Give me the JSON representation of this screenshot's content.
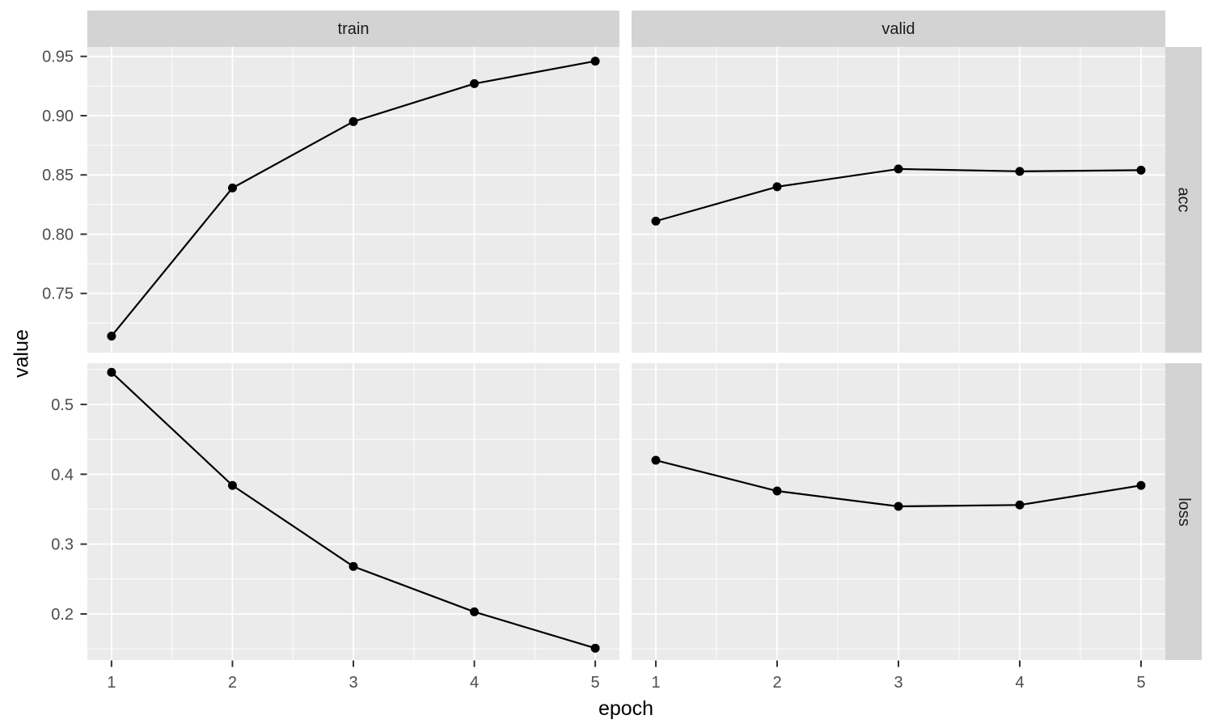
{
  "figure": {
    "xlabel": "epoch",
    "ylabel": "value",
    "facet_cols": [
      "train",
      "valid"
    ],
    "facet_rows": [
      "acc",
      "loss"
    ]
  },
  "colors": {
    "page_bg": "#FFFFFF",
    "panel_bg": "#EBEBEB",
    "strip_bg": "#D3D3D3",
    "grid": "#FFFFFF",
    "series": "#000000",
    "axis_text": "#4D4D4D",
    "tick_mark": "#333333",
    "strip_text": "#1A1A1A",
    "title_text": "#000000"
  },
  "chart_data": {
    "type": "line",
    "title": "",
    "xlabel": "epoch",
    "ylabel": "value",
    "grid": true,
    "legend": false,
    "facet_layout": {
      "columns": [
        "train",
        "valid"
      ],
      "rows": [
        "acc",
        "loss"
      ]
    },
    "x": [
      1,
      2,
      3,
      4,
      5
    ],
    "x_tick_labels": [
      "1",
      "2",
      "3",
      "4",
      "5"
    ],
    "xlim": [
      0.8,
      5.2
    ],
    "x_minor": [
      1.5,
      2.5,
      3.5,
      4.5
    ],
    "series": [
      {
        "name": "train acc",
        "col": "train",
        "row": "acc",
        "values": [
          0.714,
          0.839,
          0.895,
          0.927,
          0.946
        ]
      },
      {
        "name": "valid acc",
        "col": "valid",
        "row": "acc",
        "values": [
          0.811,
          0.84,
          0.855,
          0.853,
          0.854
        ]
      },
      {
        "name": "train loss",
        "col": "train",
        "row": "loss",
        "values": [
          0.546,
          0.384,
          0.268,
          0.203,
          0.151
        ]
      },
      {
        "name": "valid loss",
        "col": "valid",
        "row": "loss",
        "values": [
          0.42,
          0.376,
          0.354,
          0.356,
          0.384
        ]
      }
    ],
    "row_axes": {
      "acc": {
        "ticks": [
          0.75,
          0.8,
          0.85,
          0.9,
          0.95
        ],
        "tick_labels": [
          "0.75",
          "0.80",
          "0.85",
          "0.90",
          "0.95"
        ],
        "minor": [
          0.725,
          0.775,
          0.825,
          0.875,
          0.925
        ],
        "ylim": [
          0.7,
          0.958
        ]
      },
      "loss": {
        "ticks": [
          0.2,
          0.3,
          0.4,
          0.5
        ],
        "tick_labels": [
          "0.2",
          "0.3",
          "0.4",
          "0.5"
        ],
        "minor": [
          0.15,
          0.25,
          0.35,
          0.45,
          0.55
        ],
        "ylim": [
          0.134,
          0.559
        ]
      }
    }
  }
}
